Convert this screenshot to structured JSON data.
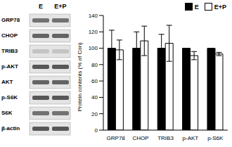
{
  "blot": {
    "columns": [
      "E",
      "E+P"
    ],
    "rows": [
      "GRP78",
      "CHOP",
      "TRIB3",
      "p-AKT",
      "AKT",
      "p-S6K",
      "S6K",
      "β-actin"
    ]
  },
  "chart_data": {
    "type": "bar",
    "y_label": "Protein contents (% of Con)",
    "categories": [
      "GRP78",
      "CHOP",
      "TRIB3",
      "p-AKT",
      "p-S6K"
    ],
    "series": [
      {
        "name": "E",
        "color": "#000000",
        "values": [
          100,
          100,
          100,
          100,
          100
        ],
        "errors": [
          22,
          20,
          17,
          0,
          0
        ]
      },
      {
        "name": "E+P",
        "color": "#ffffff",
        "values": [
          98,
          109,
          106,
          91,
          93
        ],
        "errors": [
          12,
          18,
          22,
          5,
          2
        ]
      }
    ],
    "ylim": [
      0,
      140
    ],
    "yticks": [
      0,
      20,
      40,
      60,
      80,
      100,
      120,
      140
    ],
    "legend": "top-right"
  }
}
